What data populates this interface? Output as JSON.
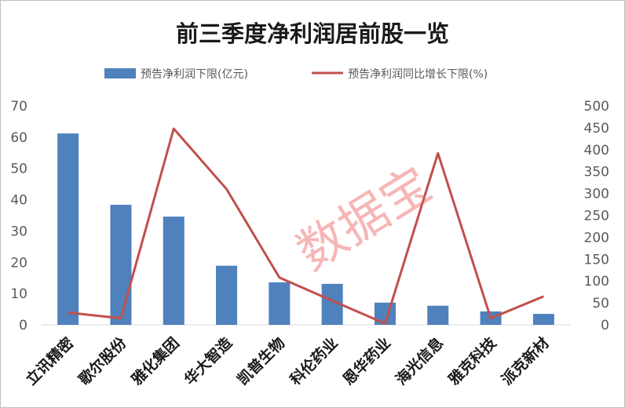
{
  "chart_data": {
    "type": "bar",
    "title": "前三季度净利润居前股一览",
    "categories": [
      "立讯精密",
      "歌尔股份",
      "雅化集团",
      "华大智造",
      "凯普生物",
      "科伦药业",
      "恩华药业",
      "海光信息",
      "雅克科技",
      "派克新材"
    ],
    "series": [
      {
        "name": "预告净利润下限(亿元)",
        "type": "bar",
        "axis": "left",
        "color": "#4f81bd",
        "values": [
          61.2,
          38.4,
          34.6,
          18.9,
          13.6,
          13.1,
          7.1,
          6.1,
          4.3,
          3.5
        ]
      },
      {
        "name": "预告净利润同比增长下限(%)",
        "type": "line",
        "axis": "right",
        "color": "#c0504d",
        "values": [
          28,
          15,
          448,
          310,
          108,
          55,
          3,
          392,
          15,
          65
        ]
      }
    ],
    "y_left": {
      "min": 0,
      "max": 70,
      "step": 10,
      "ticks": [
        "0",
        "10",
        "20",
        "30",
        "40",
        "50",
        "60",
        "70"
      ]
    },
    "y_right": {
      "min": 0,
      "max": 500,
      "step": 50,
      "ticks": [
        "0",
        "50",
        "100",
        "150",
        "200",
        "250",
        "300",
        "350",
        "400",
        "450",
        "500"
      ]
    },
    "legend_position": "top",
    "grid": false,
    "watermark": "数据宝"
  }
}
